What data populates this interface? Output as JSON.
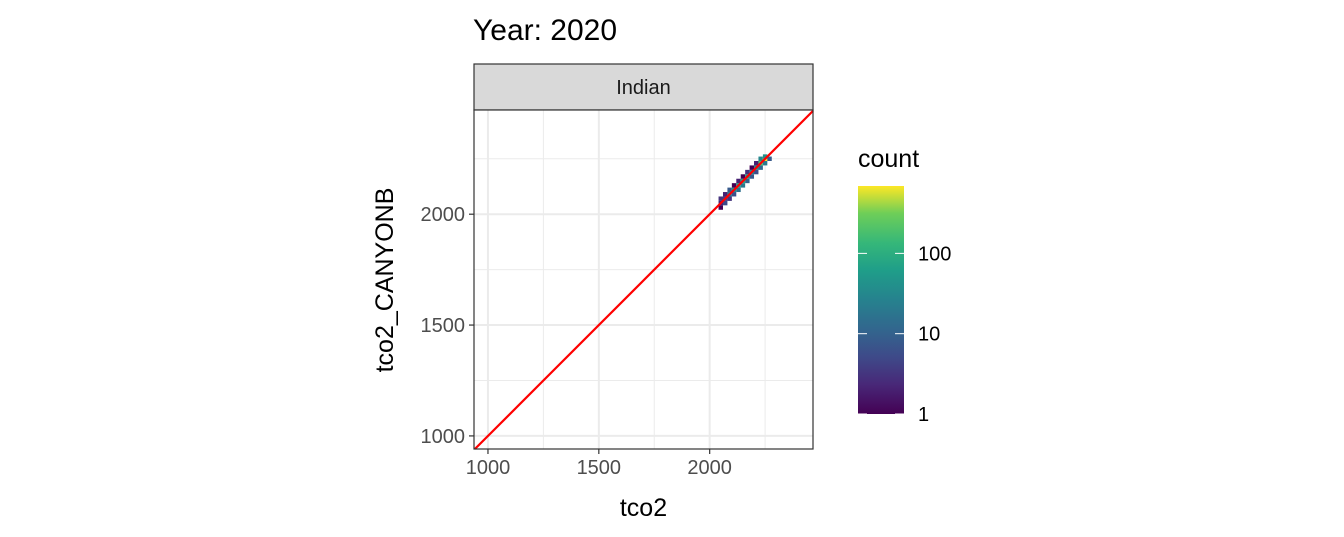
{
  "chart_data": {
    "type": "heatmap",
    "title": "Year: 2020",
    "facet_label": "Indian",
    "xlabel": "tco2",
    "ylabel": "tco2_CANYONB",
    "xlim": [
      937,
      2466
    ],
    "ylim": [
      941,
      2470
    ],
    "x_ticks": [
      1000,
      1500,
      2000
    ],
    "y_ticks": [
      1000,
      1500,
      2000
    ],
    "grid": true,
    "bin_width": 20,
    "reference_line": {
      "slope": 1,
      "intercept": 0,
      "color": "#ff0000"
    },
    "legend": {
      "title": "count",
      "scale": "log10",
      "range": [
        1,
        690
      ],
      "ticks": [
        1,
        10,
        100
      ],
      "tick_labels": [
        "1",
        "10",
        "100"
      ],
      "placement": "right",
      "palette": "viridis"
    },
    "bins": [
      [
        2050,
        2030,
        1
      ],
      [
        2050,
        2050,
        2
      ],
      [
        2050,
        2070,
        3
      ],
      [
        2070,
        2050,
        5
      ],
      [
        2070,
        2070,
        4
      ],
      [
        2070,
        2090,
        2
      ],
      [
        2090,
        2070,
        3
      ],
      [
        2090,
        2090,
        20
      ],
      [
        2090,
        2110,
        8
      ],
      [
        2110,
        2090,
        6
      ],
      [
        2110,
        2110,
        40
      ],
      [
        2110,
        2130,
        1
      ],
      [
        2130,
        2110,
        15
      ],
      [
        2130,
        2130,
        60
      ],
      [
        2130,
        2150,
        2
      ],
      [
        2150,
        2130,
        20
      ],
      [
        2150,
        2150,
        80
      ],
      [
        2150,
        2170,
        1
      ],
      [
        2170,
        2150,
        10
      ],
      [
        2170,
        2170,
        50
      ],
      [
        2170,
        2190,
        3
      ],
      [
        2190,
        2170,
        8
      ],
      [
        2190,
        2190,
        30
      ],
      [
        2190,
        2210,
        1
      ],
      [
        2210,
        2190,
        6
      ],
      [
        2210,
        2210,
        40
      ],
      [
        2210,
        2230,
        2
      ],
      [
        2230,
        2210,
        12
      ],
      [
        2230,
        2230,
        200
      ],
      [
        2230,
        2250,
        30
      ],
      [
        2250,
        2230,
        20
      ],
      [
        2250,
        2250,
        690
      ],
      [
        2250,
        2260,
        40
      ],
      [
        2270,
        2250,
        8
      ]
    ]
  }
}
